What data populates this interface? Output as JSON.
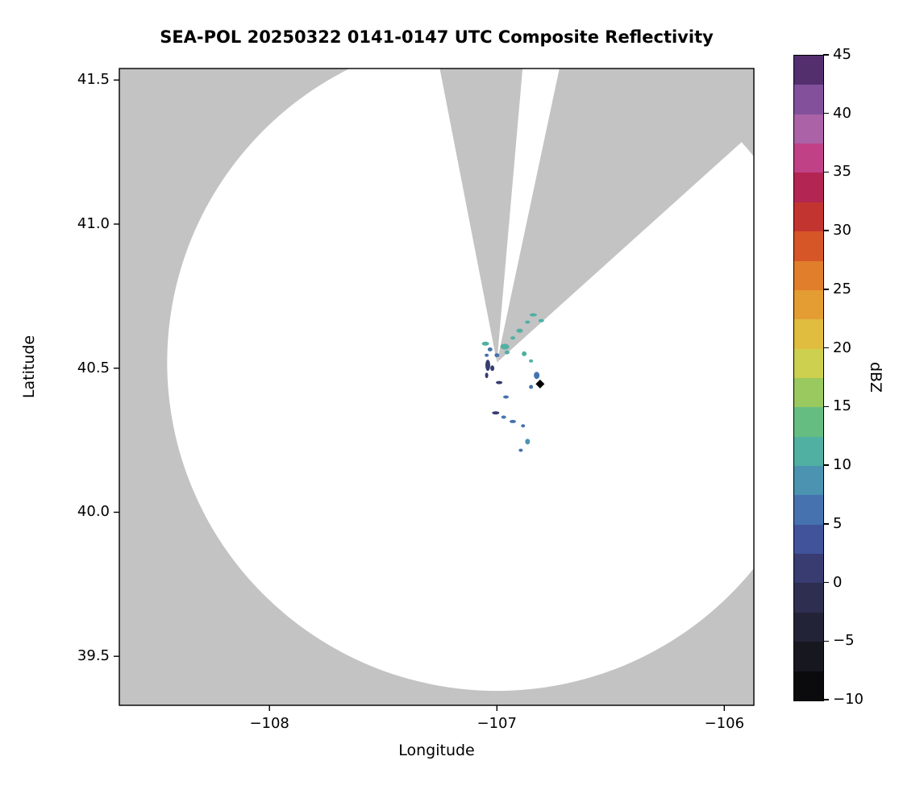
{
  "chart_data": {
    "type": "scatter",
    "title": "SEA-POL 20250322 0141-0147 UTC Composite Reflectivity",
    "xlabel": "Longitude",
    "ylabel": "Latitude",
    "xlim": [
      -108.66,
      -105.87
    ],
    "ylim": [
      39.33,
      41.54
    ],
    "x_ticks": {
      "values": [
        -108,
        -107,
        -106
      ],
      "labels": [
        "−108",
        "−107",
        "−106"
      ]
    },
    "y_ticks": {
      "values": [
        39.5,
        40.0,
        40.5,
        41.0,
        41.5
      ],
      "labels": [
        "39.5",
        "40.0",
        "40.5",
        "41.0",
        "41.5"
      ]
    },
    "colors": {
      "background": "#c3c3c3",
      "coverage": "#ffffff",
      "marker": "#000000",
      "axes": "#000000"
    },
    "radar": {
      "lon": -107.0,
      "lat": 40.52,
      "radius_deg_lon": 1.45,
      "radius_deg_lat": 1.14
    },
    "blocked_sectors_azimuth_deg": [
      [
        349,
        5
      ],
      [
        12,
        50
      ]
    ],
    "colorbar": {
      "label": "dBZ",
      "range": [
        -10,
        45
      ],
      "tick_values": [
        45,
        40,
        35,
        30,
        25,
        20,
        15,
        10,
        5,
        0,
        -5,
        -10
      ],
      "tick_labels": [
        "45",
        "40",
        "35",
        "30",
        "25",
        "20",
        "15",
        "10",
        "5",
        "0",
        "−5",
        "−10"
      ],
      "stops": [
        {
          "v": -10.0,
          "c": "#0b0b0d"
        },
        {
          "v": -7.5,
          "c": "#17171f"
        },
        {
          "v": -5.0,
          "c": "#232337"
        },
        {
          "v": -2.5,
          "c": "#2e2e51"
        },
        {
          "v": 0.0,
          "c": "#383c71"
        },
        {
          "v": 2.5,
          "c": "#40539b"
        },
        {
          "v": 5.0,
          "c": "#4673af"
        },
        {
          "v": 7.5,
          "c": "#4b93b1"
        },
        {
          "v": 10.0,
          "c": "#50b0a2"
        },
        {
          "v": 12.5,
          "c": "#66bd82"
        },
        {
          "v": 15.0,
          "c": "#99c95f"
        },
        {
          "v": 17.5,
          "c": "#cdd04f"
        },
        {
          "v": 20.0,
          "c": "#e0bc3f"
        },
        {
          "v": 22.5,
          "c": "#e39d33"
        },
        {
          "v": 25.0,
          "c": "#e07e2b"
        },
        {
          "v": 27.5,
          "c": "#d65627"
        },
        {
          "v": 30.0,
          "c": "#c23430"
        },
        {
          "v": 32.5,
          "c": "#b32553"
        },
        {
          "v": 35.0,
          "c": "#c04186"
        },
        {
          "v": 37.5,
          "c": "#ab62a6"
        },
        {
          "v": 40.0,
          "c": "#83519b"
        },
        {
          "v": 42.5,
          "c": "#532f6d"
        }
      ]
    },
    "echoes": {
      "fields": [
        "lon",
        "lat",
        "dbz",
        "w_px",
        "h_px"
      ],
      "points": [
        [
          -107.05,
          40.585,
          10,
          9,
          5
        ],
        [
          -107.03,
          40.565,
          7,
          6,
          5
        ],
        [
          -107.045,
          40.545,
          5,
          5,
          4
        ],
        [
          -107.04,
          40.51,
          0,
          6,
          14
        ],
        [
          -107.045,
          40.475,
          0,
          4,
          7
        ],
        [
          -107.02,
          40.5,
          2,
          5,
          7
        ],
        [
          -107.0,
          40.545,
          7,
          6,
          5
        ],
        [
          -106.965,
          40.575,
          10,
          11,
          7
        ],
        [
          -106.955,
          40.555,
          11,
          6,
          5
        ],
        [
          -106.93,
          40.605,
          10,
          6,
          4
        ],
        [
          -106.9,
          40.63,
          10,
          8,
          5
        ],
        [
          -106.865,
          40.66,
          12,
          6,
          4
        ],
        [
          -106.84,
          40.685,
          10,
          9,
          4
        ],
        [
          -106.805,
          40.665,
          10,
          7,
          4
        ],
        [
          -106.88,
          40.55,
          12,
          6,
          6
        ],
        [
          -106.85,
          40.525,
          10,
          5,
          4
        ],
        [
          -106.825,
          40.475,
          5,
          7,
          9
        ],
        [
          -106.85,
          40.435,
          5,
          5,
          5
        ],
        [
          -106.99,
          40.45,
          1,
          8,
          4
        ],
        [
          -106.96,
          40.4,
          5,
          7,
          4
        ],
        [
          -107.005,
          40.345,
          2,
          9,
          4
        ],
        [
          -106.97,
          40.33,
          5,
          6,
          4
        ],
        [
          -106.93,
          40.315,
          5,
          8,
          4
        ],
        [
          -106.885,
          40.3,
          7,
          5,
          4
        ],
        [
          -106.865,
          40.245,
          9,
          6,
          7
        ],
        [
          -106.895,
          40.215,
          5,
          5,
          4
        ]
      ]
    },
    "site_marker": {
      "lon": -106.81,
      "lat": 40.445,
      "shape": "diamond"
    }
  }
}
